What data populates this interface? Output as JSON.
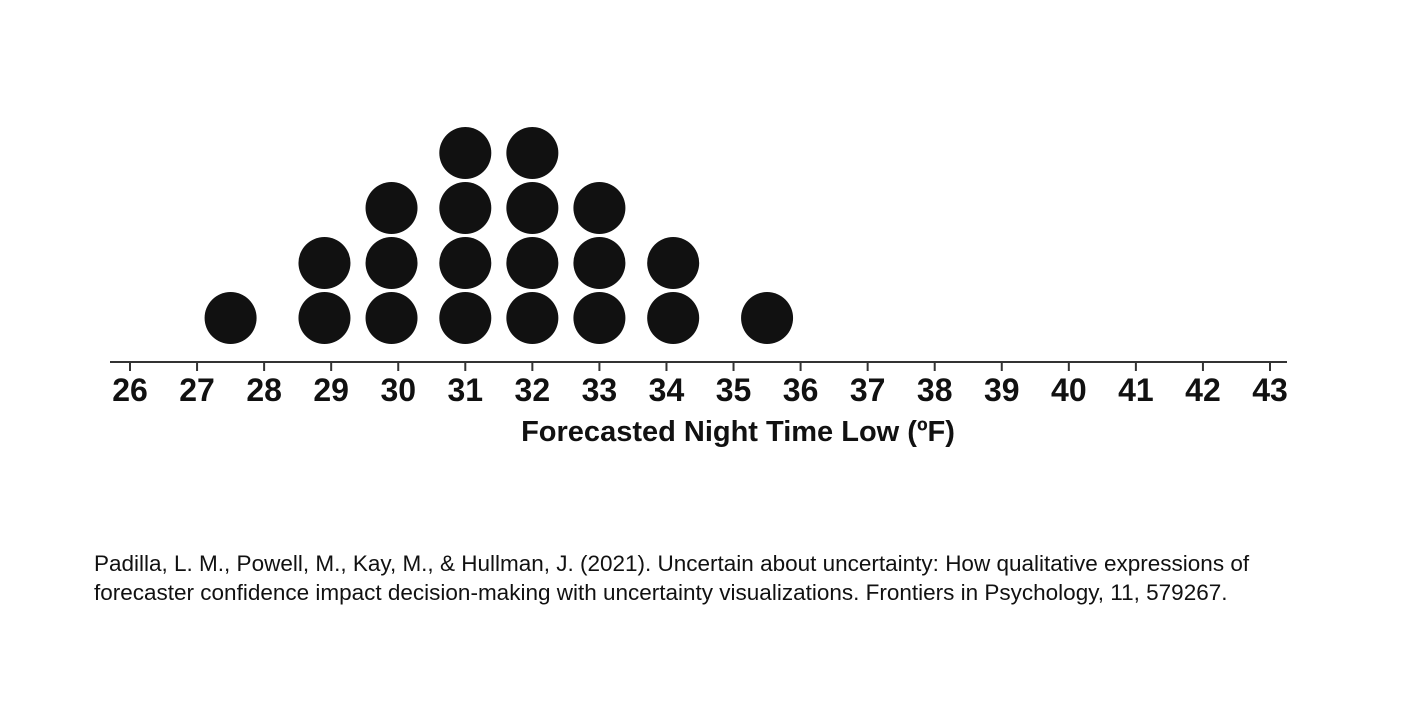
{
  "chart_data": {
    "type": "dot plot (quantile dotplot)",
    "x_ticks": [
      26,
      27,
      28,
      29,
      30,
      31,
      32,
      33,
      34,
      35,
      36,
      37,
      38,
      39,
      40,
      41,
      42,
      43
    ],
    "xlim": [
      26,
      43
    ],
    "xlabel": "Forecasted Night Time Low (ºF)",
    "dot_color": "#111111",
    "grid": false,
    "points": [
      {
        "x": 27.5,
        "count": 1
      },
      {
        "x": 28.9,
        "count": 2
      },
      {
        "x": 29.9,
        "count": 3
      },
      {
        "x": 31.0,
        "count": 4
      },
      {
        "x": 32.0,
        "count": 4
      },
      {
        "x": 33.0,
        "count": 3
      },
      {
        "x": 34.1,
        "count": 2
      },
      {
        "x": 35.5,
        "count": 1
      }
    ]
  },
  "citation": "Padilla, L. M., Powell, M., Kay, M., & Hullman, J. (2021). Uncertain about uncertainty: How qualitative expressions of forecaster confidence impact decision-making with uncertainty visualizations. Frontiers in Psychology, 11, 579267."
}
